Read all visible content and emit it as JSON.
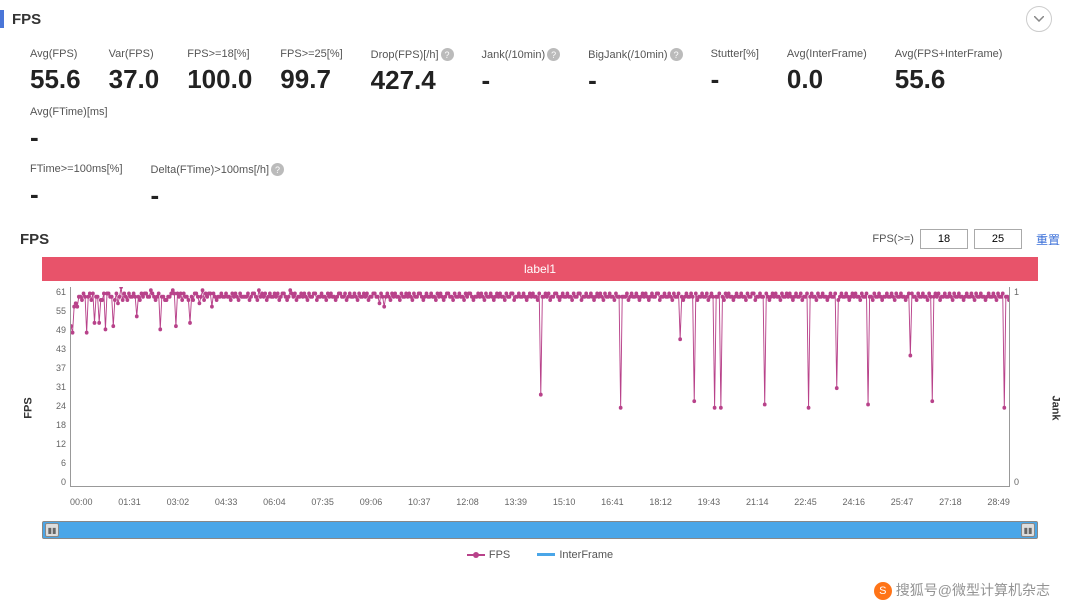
{
  "header": {
    "title": "FPS"
  },
  "stats_row1": [
    {
      "label": "Avg(FPS)",
      "value": "55.6",
      "help": false
    },
    {
      "label": "Var(FPS)",
      "value": "37.0",
      "help": false
    },
    {
      "label": "FPS>=18[%]",
      "value": "100.0",
      "help": false
    },
    {
      "label": "FPS>=25[%]",
      "value": "99.7",
      "help": false
    },
    {
      "label": "Drop(FPS)[/h]",
      "value": "427.4",
      "help": true
    },
    {
      "label": "Jank(/10min)",
      "value": "-",
      "help": true
    },
    {
      "label": "BigJank(/10min)",
      "value": "-",
      "help": true
    },
    {
      "label": "Stutter[%]",
      "value": "-",
      "help": false
    },
    {
      "label": "Avg(InterFrame)",
      "value": "0.0",
      "help": false
    },
    {
      "label": "Avg(FPS+InterFrame)",
      "value": "55.6",
      "help": false
    },
    {
      "label": "Avg(FTime)[ms]",
      "value": "-",
      "help": false
    }
  ],
  "stats_row2": [
    {
      "label": "FTime>=100ms[%]",
      "value": "-",
      "help": false
    },
    {
      "label": "Delta(FTime)>100ms[/h]",
      "value": "-",
      "help": true
    }
  ],
  "chart": {
    "title": "FPS",
    "filter_label": "FPS(>=)",
    "filter_values": [
      "18",
      "25"
    ],
    "reset_label": "重置",
    "label_bar": "label1",
    "label_bar_color": "#e8536a",
    "y_left_label": "FPS",
    "y_right_label": "Jank",
    "y_left_ticks": [
      "61",
      "55",
      "49",
      "43",
      "37",
      "31",
      "24",
      "18",
      "12",
      "6",
      "0"
    ],
    "y_right_ticks": [
      "1",
      "0"
    ],
    "y_left_min": 0,
    "y_left_max": 61,
    "x_ticks": [
      "00:00",
      "01:31",
      "03:02",
      "04:33",
      "06:04",
      "07:35",
      "09:06",
      "10:37",
      "12:08",
      "13:39",
      "15:10",
      "16:41",
      "18:12",
      "19:43",
      "21:14",
      "22:45",
      "24:16",
      "25:47",
      "27:18",
      "28:49"
    ],
    "series_color": "#b8428a",
    "marker_size": 2,
    "line_width": 1,
    "background": "#ffffff",
    "legend": {
      "fps": "FPS",
      "interframe": "InterFrame"
    },
    "fps_values": [
      49,
      47,
      55,
      56,
      55,
      58,
      58,
      57,
      59,
      58,
      47,
      58,
      59,
      57,
      59,
      50,
      58,
      58,
      50,
      57,
      57,
      59,
      48,
      59,
      59,
      58,
      58,
      49,
      57,
      59,
      56,
      58,
      61,
      57,
      59,
      58,
      57,
      59,
      58,
      58,
      59,
      58,
      52,
      58,
      57,
      59,
      58,
      59,
      59,
      58,
      58,
      60,
      59,
      58,
      57,
      58,
      59,
      48,
      58,
      58,
      57,
      57,
      58,
      58,
      59,
      60,
      59,
      49,
      59,
      58,
      59,
      57,
      59,
      58,
      58,
      57,
      50,
      58,
      57,
      59,
      59,
      58,
      56,
      58,
      60,
      57,
      59,
      58,
      59,
      59,
      55,
      59,
      58,
      57,
      58,
      58,
      59,
      58,
      58,
      59,
      58,
      58,
      57,
      59,
      58,
      59,
      58,
      57,
      59,
      58,
      58,
      58,
      58,
      59,
      57,
      58,
      59,
      59,
      58,
      57,
      60,
      58,
      59,
      58,
      59,
      57,
      58,
      59,
      58,
      58,
      59,
      58,
      59,
      57,
      58,
      59,
      59,
      58,
      57,
      58,
      60,
      59,
      58,
      59,
      57,
      58,
      58,
      59,
      58,
      59,
      58,
      57,
      59,
      58,
      58,
      59,
      59,
      57,
      58,
      58,
      59,
      58,
      58,
      57,
      59,
      58,
      59,
      58,
      58,
      57,
      58,
      59,
      59,
      58,
      58,
      59,
      57,
      58,
      59,
      58,
      58,
      59,
      58,
      57,
      59,
      58,
      58,
      59,
      58,
      59,
      57,
      58,
      58,
      59,
      59,
      58,
      58,
      56,
      59,
      58,
      55,
      58,
      59,
      58,
      57,
      59,
      58,
      59,
      58,
      58,
      57,
      59,
      58,
      58,
      59,
      58,
      59,
      58,
      57,
      59,
      58,
      58,
      59,
      59,
      58,
      57,
      58,
      59,
      58,
      58,
      59,
      58,
      58,
      57,
      59,
      58,
      59,
      58,
      57,
      58,
      59,
      59,
      58,
      58,
      57,
      59,
      58,
      58,
      59,
      58,
      58,
      57,
      59,
      58,
      59,
      59,
      58,
      57,
      58,
      58,
      59,
      58,
      59,
      58,
      57,
      59,
      58,
      58,
      59,
      58,
      57,
      58,
      59,
      58,
      59,
      58,
      58,
      57,
      59,
      58,
      58,
      59,
      59,
      57,
      58,
      58,
      59,
      58,
      58,
      59,
      58,
      57,
      58,
      59,
      58,
      59,
      58,
      58,
      57,
      59,
      28,
      58,
      58,
      59,
      58,
      59,
      57,
      58,
      58,
      59,
      59,
      58,
      57,
      58,
      59,
      58,
      58,
      59,
      58,
      58,
      57,
      59,
      58,
      58,
      59,
      59,
      57,
      58,
      58,
      59,
      58,
      58,
      59,
      58,
      57,
      58,
      59,
      58,
      59,
      58,
      57,
      59,
      58,
      58,
      59,
      58,
      58,
      57,
      59,
      58,
      58,
      24,
      58,
      58,
      58,
      59,
      57,
      58,
      59,
      58,
      58,
      59,
      58,
      57,
      58,
      59,
      58,
      59,
      58,
      57,
      58,
      59,
      58,
      58,
      59,
      59,
      57,
      58,
      58,
      59,
      58,
      58,
      59,
      58,
      57,
      59,
      58,
      58,
      59,
      45,
      58,
      57,
      58,
      59,
      58,
      58,
      59,
      58,
      26,
      59,
      57,
      58,
      58,
      59,
      58,
      58,
      59,
      57,
      58,
      59,
      58,
      24,
      58,
      58,
      59,
      24,
      58,
      57,
      59,
      58,
      59,
      58,
      58,
      57,
      58,
      59,
      58,
      58,
      59,
      58,
      58,
      57,
      59,
      58,
      58,
      59,
      59,
      57,
      58,
      58,
      59,
      58,
      58,
      25,
      59,
      58,
      57,
      58,
      59,
      58,
      59,
      58,
      58,
      57,
      59,
      58,
      58,
      59,
      58,
      59,
      58,
      57,
      58,
      59,
      58,
      58,
      59,
      57,
      58,
      58,
      59,
      24,
      58,
      59,
      58,
      58,
      57,
      59,
      58,
      58,
      59,
      58,
      58,
      57,
      58,
      59,
      58,
      58,
      59,
      30,
      57,
      58,
      59,
      58,
      58,
      59,
      58,
      57,
      58,
      59,
      58,
      59,
      58,
      58,
      57,
      59,
      58,
      58,
      59,
      25,
      58,
      58,
      57,
      59,
      58,
      58,
      59,
      58,
      57,
      58,
      58,
      59,
      58,
      58,
      59,
      58,
      57,
      59,
      58,
      58,
      59,
      58,
      58,
      57,
      58,
      59,
      40,
      59,
      58,
      58,
      57,
      59,
      58,
      58,
      59,
      58,
      58,
      57,
      59,
      58,
      26,
      58,
      59,
      58,
      59,
      57,
      58,
      58,
      59,
      58,
      58,
      59,
      58,
      57,
      59,
      58,
      58,
      59,
      58,
      58,
      57,
      58,
      59,
      58,
      58,
      59,
      58,
      57,
      59,
      58,
      58,
      59,
      58,
      58,
      57,
      58,
      59,
      58,
      58,
      59,
      58,
      57,
      59,
      58,
      58,
      59,
      24,
      58,
      58,
      57
    ]
  },
  "watermark": {
    "logo": "S",
    "text": "搜狐号@微型计算机杂志"
  }
}
